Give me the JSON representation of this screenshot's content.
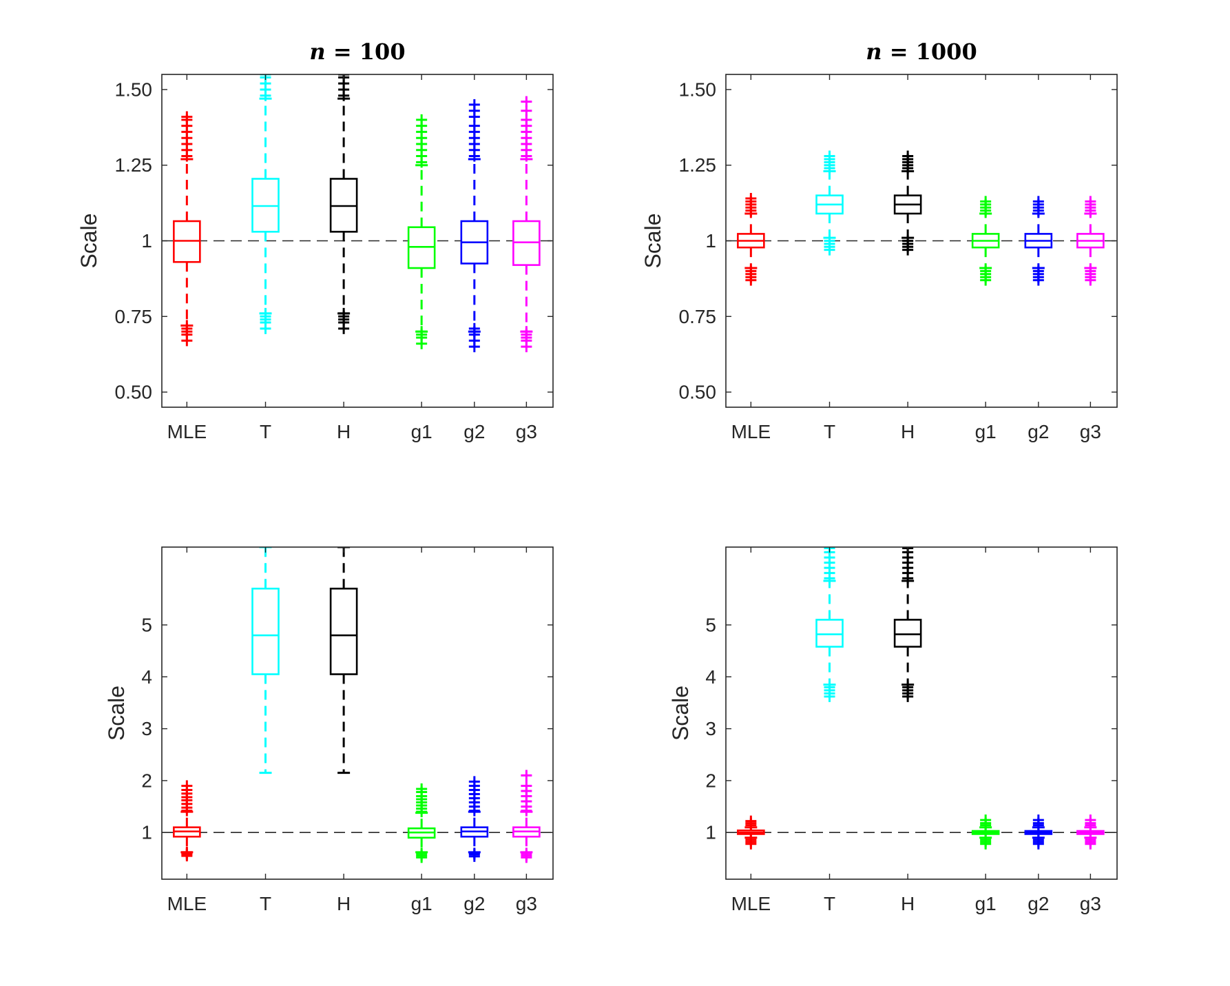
{
  "figure_background": "#ffffff",
  "chart_data": [
    {
      "type": "box",
      "title": "n = 100",
      "title_var": "n",
      "title_eq": " = 100",
      "xlabel": "",
      "ylabel": "Scale",
      "ylim": [
        0.45,
        1.55
      ],
      "yticks": [
        0.5,
        0.75,
        1,
        1.25,
        1.5
      ],
      "ytick_labels": [
        "0.50",
        "0.75",
        "1",
        "1.25",
        "1.50"
      ],
      "reference_line": 1,
      "categories": [
        "MLE",
        "T",
        "H",
        "g1",
        "g2",
        "g3"
      ],
      "boxes": [
        {
          "label": "MLE",
          "color": "#ff0000",
          "whisker_low": 0.72,
          "q1": 0.93,
          "median": 1.0,
          "q3": 1.065,
          "whisker_high": 1.27,
          "outliers_low": [
            0.67,
            0.69,
            0.7,
            0.71,
            0.72
          ],
          "outliers_high": [
            1.28,
            1.3,
            1.32,
            1.34,
            1.36,
            1.38,
            1.4,
            1.41
          ]
        },
        {
          "label": "T",
          "color": "#00ffff",
          "whisker_low": 0.76,
          "q1": 1.03,
          "median": 1.115,
          "q3": 1.205,
          "whisker_high": 1.47,
          "outliers_low": [
            0.71,
            0.73,
            0.74,
            0.75,
            0.76
          ],
          "outliers_high": [
            1.48,
            1.5,
            1.52,
            1.54,
            1.55
          ]
        },
        {
          "label": "H",
          "color": "#000000",
          "whisker_low": 0.76,
          "q1": 1.03,
          "median": 1.115,
          "q3": 1.205,
          "whisker_high": 1.47,
          "outliers_low": [
            0.71,
            0.73,
            0.74,
            0.75,
            0.76
          ],
          "outliers_high": [
            1.48,
            1.5,
            1.52,
            1.54,
            1.55
          ]
        },
        {
          "label": "g1",
          "color": "#00ff00",
          "whisker_low": 0.7,
          "q1": 0.91,
          "median": 0.98,
          "q3": 1.045,
          "whisker_high": 1.25,
          "outliers_low": [
            0.66,
            0.68,
            0.69,
            0.7
          ],
          "outliers_high": [
            1.26,
            1.28,
            1.3,
            1.32,
            1.34,
            1.36,
            1.38,
            1.4
          ]
        },
        {
          "label": "g2",
          "color": "#0000ff",
          "whisker_low": 0.7,
          "q1": 0.925,
          "median": 0.995,
          "q3": 1.065,
          "whisker_high": 1.27,
          "outliers_low": [
            0.65,
            0.67,
            0.69,
            0.7,
            0.71
          ],
          "outliers_high": [
            1.28,
            1.3,
            1.32,
            1.34,
            1.36,
            1.38,
            1.41,
            1.43,
            1.45
          ]
        },
        {
          "label": "g3",
          "color": "#ff00ff",
          "whisker_low": 0.7,
          "q1": 0.92,
          "median": 0.995,
          "q3": 1.065,
          "whisker_high": 1.27,
          "outliers_low": [
            0.65,
            0.67,
            0.68,
            0.69,
            0.7
          ],
          "outliers_high": [
            1.28,
            1.3,
            1.32,
            1.34,
            1.36,
            1.38,
            1.4,
            1.43,
            1.46
          ]
        }
      ]
    },
    {
      "type": "box",
      "title": "n = 1000",
      "title_var": "n",
      "title_eq": " = 1000",
      "xlabel": "",
      "ylabel": "Scale",
      "ylim": [
        0.45,
        1.55
      ],
      "yticks": [
        0.5,
        0.75,
        1,
        1.25,
        1.5
      ],
      "ytick_labels": [
        "0.50",
        "0.75",
        "1",
        "1.25",
        "1.50"
      ],
      "reference_line": 1,
      "categories": [
        "MLE",
        "T",
        "H",
        "g1",
        "g2",
        "g3"
      ],
      "boxes": [
        {
          "label": "MLE",
          "color": "#ff0000",
          "whisker_low": 0.91,
          "q1": 0.978,
          "median": 1.0,
          "q3": 1.023,
          "whisker_high": 1.09,
          "outliers_low": [
            0.87,
            0.88,
            0.89,
            0.9
          ],
          "outliers_high": [
            1.1,
            1.11,
            1.12,
            1.13,
            1.14
          ]
        },
        {
          "label": "T",
          "color": "#00ffff",
          "whisker_low": 1.01,
          "q1": 1.09,
          "median": 1.12,
          "q3": 1.15,
          "whisker_high": 1.23,
          "outliers_low": [
            0.97,
            0.98,
            0.99,
            1.0
          ],
          "outliers_high": [
            1.24,
            1.25,
            1.26,
            1.27,
            1.28
          ]
        },
        {
          "label": "H",
          "color": "#000000",
          "whisker_low": 1.01,
          "q1": 1.09,
          "median": 1.12,
          "q3": 1.15,
          "whisker_high": 1.23,
          "outliers_low": [
            0.97,
            0.98,
            0.99,
            1.0
          ],
          "outliers_high": [
            1.24,
            1.25,
            1.26,
            1.27,
            1.28
          ]
        },
        {
          "label": "g1",
          "color": "#00ff00",
          "whisker_low": 0.91,
          "q1": 0.978,
          "median": 1.0,
          "q3": 1.023,
          "whisker_high": 1.09,
          "outliers_low": [
            0.87,
            0.88,
            0.89,
            0.9
          ],
          "outliers_high": [
            1.1,
            1.11,
            1.12,
            1.13
          ]
        },
        {
          "label": "g2",
          "color": "#0000ff",
          "whisker_low": 0.91,
          "q1": 0.978,
          "median": 1.0,
          "q3": 1.023,
          "whisker_high": 1.09,
          "outliers_low": [
            0.87,
            0.88,
            0.89,
            0.9
          ],
          "outliers_high": [
            1.1,
            1.11,
            1.12,
            1.13
          ]
        },
        {
          "label": "g3",
          "color": "#ff00ff",
          "whisker_low": 0.91,
          "q1": 0.978,
          "median": 1.0,
          "q3": 1.023,
          "whisker_high": 1.09,
          "outliers_low": [
            0.87,
            0.88,
            0.89,
            0.9
          ],
          "outliers_high": [
            1.1,
            1.11,
            1.12,
            1.13
          ]
        }
      ]
    },
    {
      "type": "box",
      "title": "",
      "title_var": "",
      "title_eq": "",
      "xlabel": "",
      "ylabel": "Scale",
      "ylim": [
        0.1,
        6.5
      ],
      "yticks": [
        1,
        2,
        3,
        4,
        5
      ],
      "ytick_labels": [
        "1",
        "2",
        "3",
        "4",
        "5"
      ],
      "reference_line": 1,
      "categories": [
        "MLE",
        "T",
        "H",
        "g1",
        "g2",
        "g3"
      ],
      "boxes": [
        {
          "label": "MLE",
          "color": "#ff0000",
          "whisker_low": 0.62,
          "q1": 0.92,
          "median": 1.02,
          "q3": 1.1,
          "whisker_high": 1.4,
          "outliers_low": [
            0.55,
            0.58,
            0.6,
            0.62
          ],
          "outliers_high": [
            1.42,
            1.48,
            1.55,
            1.62,
            1.68,
            1.75,
            1.82,
            1.9
          ]
        },
        {
          "label": "T",
          "color": "#00ffff",
          "whisker_low": 2.15,
          "q1": 4.05,
          "median": 4.8,
          "q3": 5.7,
          "whisker_high": 6.5,
          "outliers_low": [],
          "outliers_high": []
        },
        {
          "label": "H",
          "color": "#000000",
          "whisker_low": 2.15,
          "q1": 4.05,
          "median": 4.8,
          "q3": 5.7,
          "whisker_high": 6.5,
          "outliers_low": [],
          "outliers_high": []
        },
        {
          "label": "g1",
          "color": "#00ff00",
          "whisker_low": 0.62,
          "q1": 0.9,
          "median": 1.0,
          "q3": 1.08,
          "whisker_high": 1.38,
          "outliers_low": [
            0.52,
            0.56,
            0.6
          ],
          "outliers_high": [
            1.4,
            1.46,
            1.52,
            1.58,
            1.64,
            1.7,
            1.78,
            1.84
          ]
        },
        {
          "label": "g2",
          "color": "#0000ff",
          "whisker_low": 0.62,
          "q1": 0.92,
          "median": 1.02,
          "q3": 1.1,
          "whisker_high": 1.4,
          "outliers_low": [
            0.54,
            0.58,
            0.6
          ],
          "outliers_high": [
            1.42,
            1.5,
            1.58,
            1.66,
            1.74,
            1.82,
            1.9,
            1.98
          ]
        },
        {
          "label": "g3",
          "color": "#ff00ff",
          "whisker_low": 0.62,
          "q1": 0.92,
          "median": 1.02,
          "q3": 1.1,
          "whisker_high": 1.4,
          "outliers_low": [
            0.52,
            0.56,
            0.6
          ],
          "outliers_high": [
            1.42,
            1.5,
            1.6,
            1.7,
            1.8,
            1.9,
            2.1
          ]
        }
      ]
    },
    {
      "type": "box",
      "title": "",
      "title_var": "",
      "title_eq": "",
      "xlabel": "",
      "ylabel": "Scale",
      "ylim": [
        0.1,
        6.5
      ],
      "yticks": [
        1,
        2,
        3,
        4,
        5
      ],
      "ytick_labels": [
        "1",
        "2",
        "3",
        "4",
        "5"
      ],
      "reference_line": 1,
      "categories": [
        "MLE",
        "T",
        "H",
        "g1",
        "g2",
        "g3"
      ],
      "boxes": [
        {
          "label": "MLE",
          "color": "#ff0000",
          "whisker_low": 0.9,
          "q1": 0.97,
          "median": 1.0,
          "q3": 1.04,
          "whisker_high": 1.1,
          "outliers_low": [
            0.78,
            0.82,
            0.86
          ],
          "outliers_high": [
            1.14,
            1.18,
            1.22
          ]
        },
        {
          "label": "T",
          "color": "#00ffff",
          "whisker_low": 3.85,
          "q1": 4.58,
          "median": 4.82,
          "q3": 5.1,
          "whisker_high": 5.85,
          "outliers_low": [
            3.62,
            3.68,
            3.74,
            3.8
          ],
          "outliers_high": [
            5.9,
            6.0,
            6.1,
            6.2,
            6.3,
            6.4,
            6.48
          ]
        },
        {
          "label": "H",
          "color": "#000000",
          "whisker_low": 3.85,
          "q1": 4.58,
          "median": 4.82,
          "q3": 5.1,
          "whisker_high": 5.85,
          "outliers_low": [
            3.62,
            3.68,
            3.74,
            3.8
          ],
          "outliers_high": [
            5.9,
            6.0,
            6.1,
            6.2,
            6.3,
            6.4,
            6.48
          ]
        },
        {
          "label": "g1",
          "color": "#00ff00",
          "whisker_low": 0.9,
          "q1": 0.97,
          "median": 1.0,
          "q3": 1.03,
          "whisker_high": 1.1,
          "outliers_low": [
            0.78,
            0.82,
            0.86
          ],
          "outliers_high": [
            1.14,
            1.18,
            1.24
          ]
        },
        {
          "label": "g2",
          "color": "#0000ff",
          "whisker_low": 0.9,
          "q1": 0.97,
          "median": 1.0,
          "q3": 1.03,
          "whisker_high": 1.1,
          "outliers_low": [
            0.78,
            0.82,
            0.86
          ],
          "outliers_high": [
            1.14,
            1.18,
            1.24
          ]
        },
        {
          "label": "g3",
          "color": "#ff00ff",
          "whisker_low": 0.9,
          "q1": 0.97,
          "median": 1.0,
          "q3": 1.03,
          "whisker_high": 1.1,
          "outliers_low": [
            0.78,
            0.82,
            0.86
          ],
          "outliers_high": [
            1.14,
            1.18,
            1.24
          ]
        }
      ]
    }
  ]
}
